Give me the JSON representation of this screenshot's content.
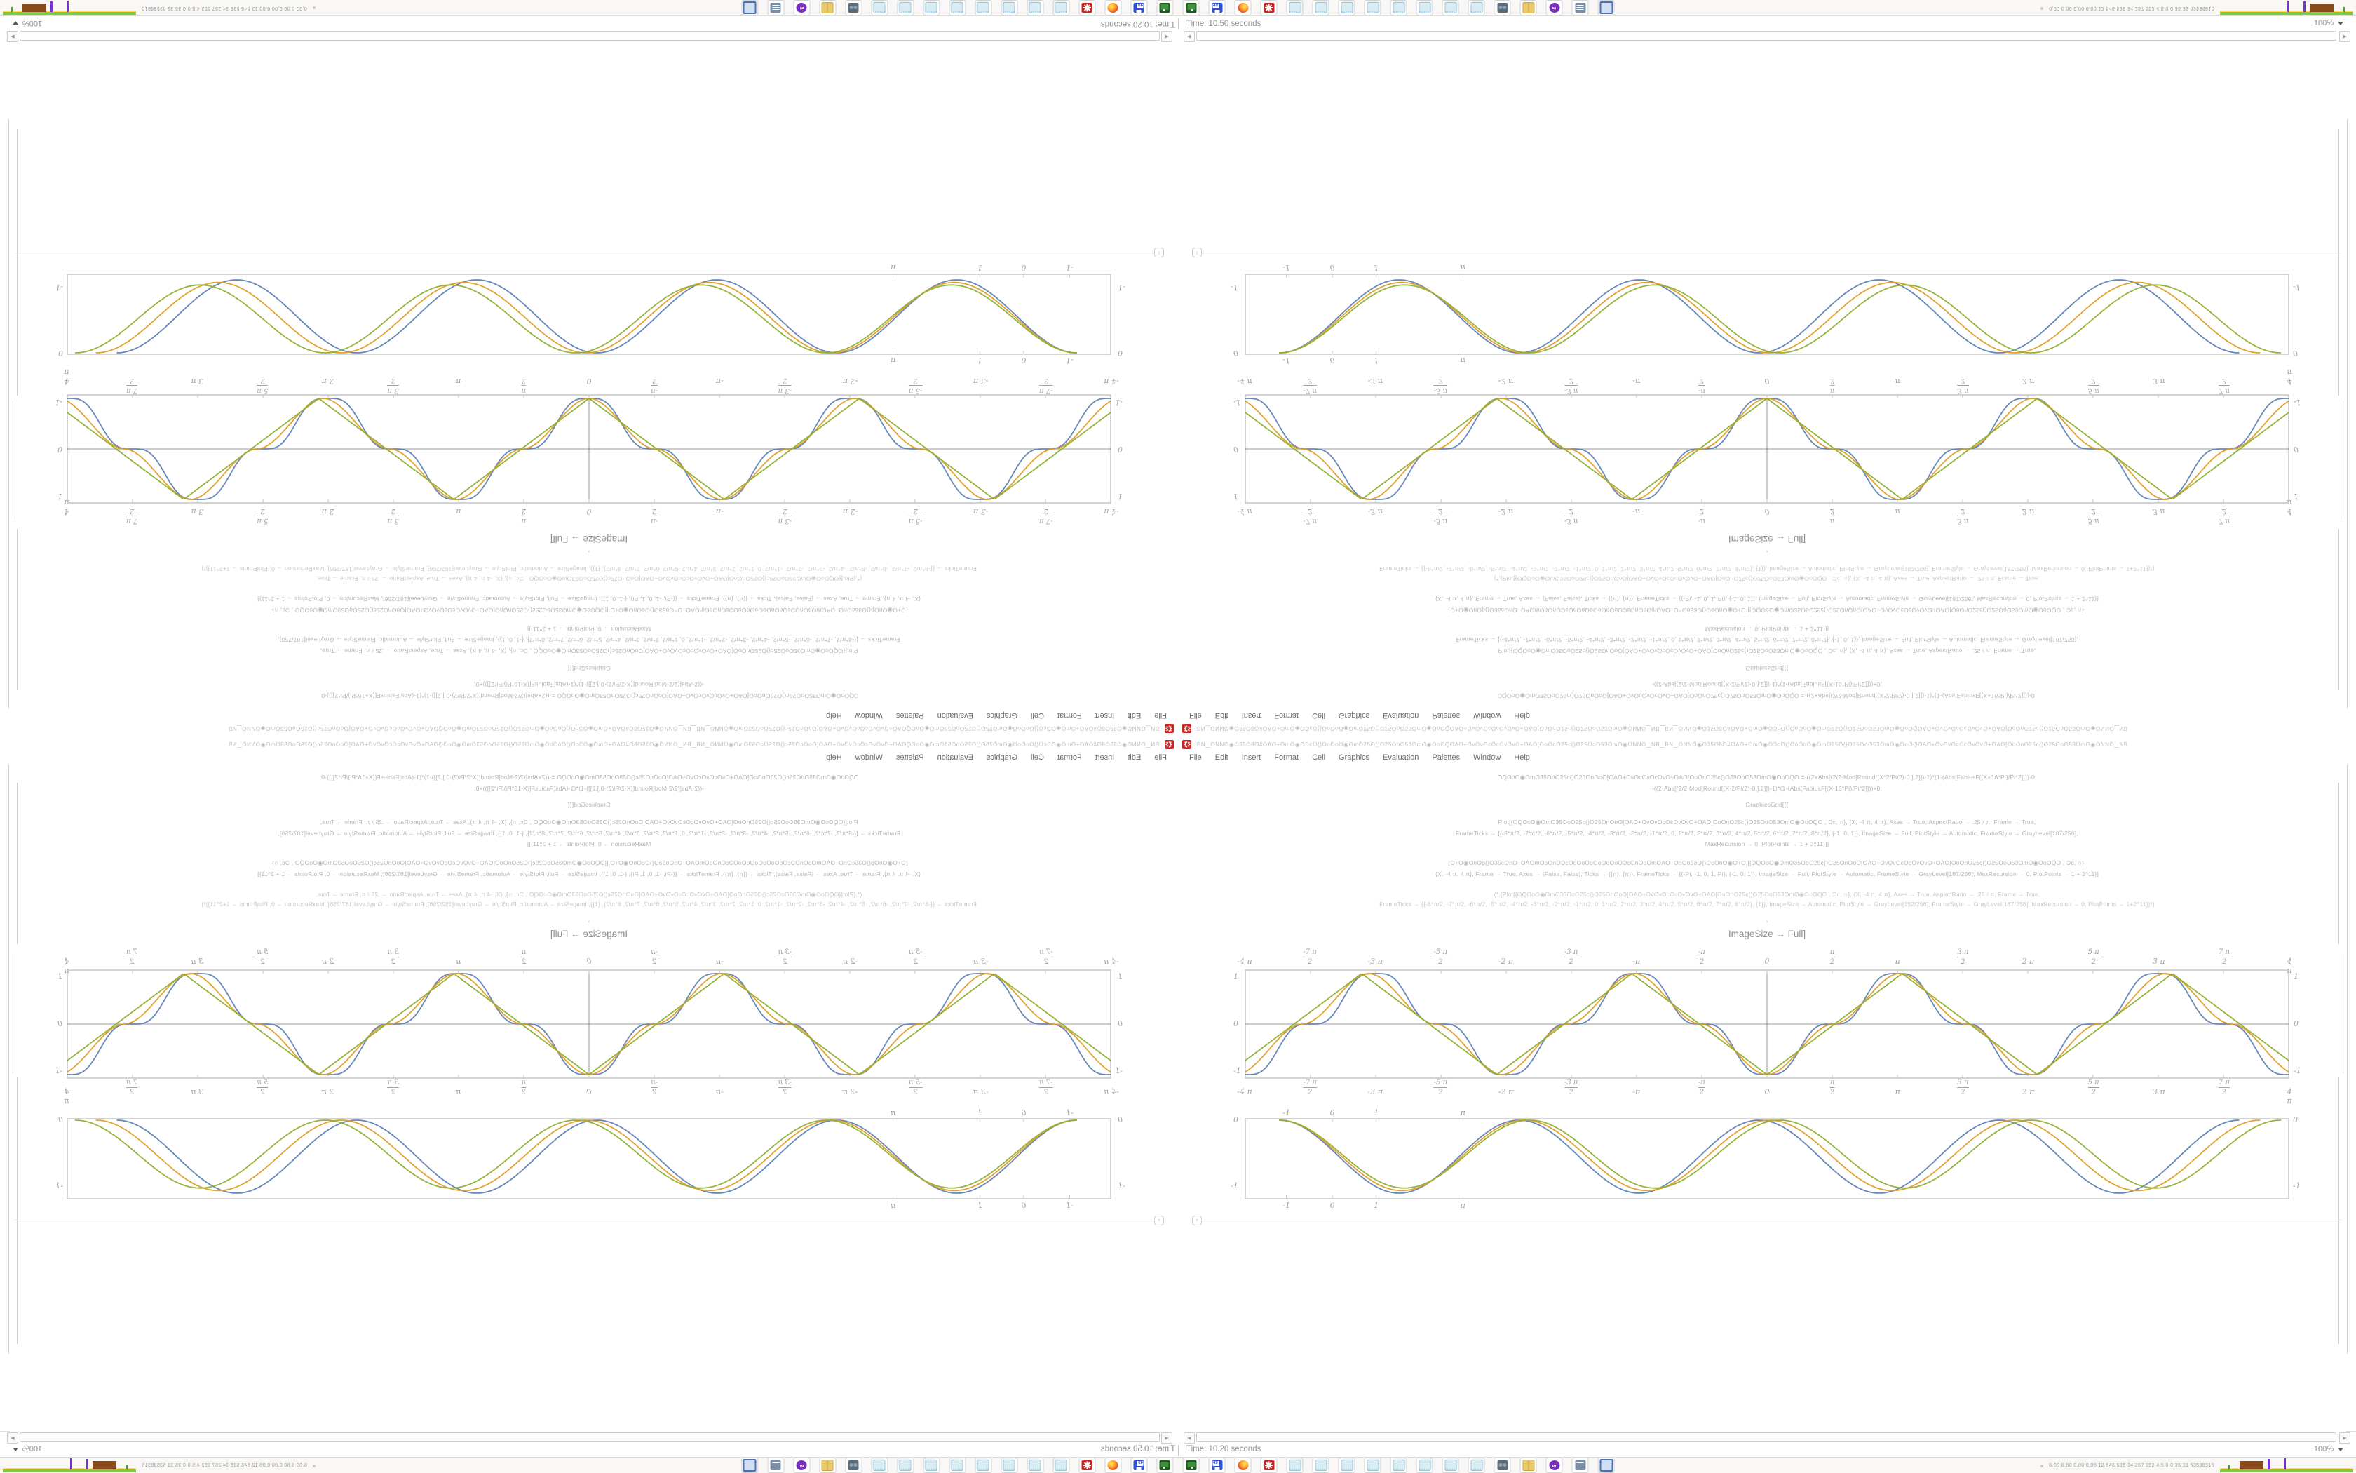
{
  "panel": {
    "monitor_values": "0.00 0.00 0.00 0.00   12 546 536   34 257 152   4.5   0.0   35   31   63586910",
    "expander_left": "»",
    "expander_right": "«",
    "icon_names": [
      "monitor",
      "script",
      "mask",
      "cabinet",
      "camera",
      "pages",
      "pages",
      "pages",
      "pages",
      "pages",
      "pages",
      "pages",
      "pages",
      "gear",
      "flame",
      "floppy49",
      "floppyG"
    ],
    "floppy_label": "49"
  },
  "status": {
    "zoom_label": "100%",
    "top_left_time": "Time: 10.20 seconds",
    "top_right_time": "Time: 10.50 seconds",
    "bottom_left_time": "Time: 10.50 seconds",
    "bottom_right_time": "Time: 10.20 seconds"
  },
  "window": {
    "title_glyphs": "BN‿ONNO◉O35O8O#OAO+OmO◉OƆcO()OoOoO◉OmO25O()O25OoO53OmO◉OoOQOAO+OvOvOcOcOvOvO+OAO[OoOnO25c()O25OoO53OmO◉ONNO‿NB‿BN‿ONNO◉O35O8O#OAO+OmO◉OƆcO()OoOoO◉OmO25O()O25OoO53OmO◉OoOQOAO+OvOvOcOcOvOvO+OAO[OoOnO25c()O25OoO53OmO◉ONNO‿NB",
    "menus": [
      "File",
      "Edit",
      "Insert",
      "Format",
      "Cell",
      "Graphics",
      "Evaluation",
      "Palettes",
      "Window",
      "Help"
    ],
    "code": {
      "l1": "OQOoO◉OmO35OoO25c()O25OnOoO[OAO+OvOcOvOcOvO+OAO[OoOnO25c()O25OoO53OmO◉OoOQO  =-((2+Abs[(2/2-Mod[Round[(X*2/Pi/2)-0.],2]])-1)*(1-(Abs[FabiusF[(X+16*Pi)/Pi*2]]))-0;",
      "l2": "-((2-Abs[(2/2-Mod[Round[(X-2/Pi/2)-0.],2]])-1)*(1-(Abs[FabiusF[(X-16*Pi)/Pi*2]]))+0;",
      "gg": "GraphicsGrid[{{",
      "a1": "Plot[{OQOoO◉OmO35OoO25c()O25OnOoO[OAO+OvOvOcOcOvOvO+OAO[OoOnO25c()O25OoO53OmO◉OoOQO   , Ɔc, ∩}, {X, -4 π, 4 π}, Axes → True, AspectRatio → .25 / π, Frame → True,",
      "a2": "FrameTicks → {{-8*π/2, -7*π/2, -6*π/2, -5*π/2, -4*π/2, -3*π/2, -2*π/2, -1*π/2, 0, 1*π/2, 2*π/2, 3*π/2, 4*π/2, 5*π/2, 6*π/2, 7*π/2, 8*π/2}, {-1, 0, 1}}, ImageSize → Full, PlotStyle → Automatic, FrameStyle → GrayLevel[187/256],",
      "a3": "MaxRecursion → 0, PlotPoints → 1 + 2^11}]]",
      "b1": "{O+O◉OnOp()O35cOnO+OAOmOoOnOƆcOoOoOoOoOoOoOƆcOnOoOmOAO+OnOo53O()OoOnO◉O+O   [[OQOoO◉OmO35OoO25c()O25OnOoO[OAO+OvOvOcOcOvOvO+OAO[OoOnO25c()O25OoO53OmO◉OoOQO   , Ɔc, ∩},",
      "b2": "{X, -4 π, 4 π}, Frame → True, Axes → {False, False}, Ticks → {{π}, {π}}, FrameTicks → {{-Pi, -1, 0, 1, Pi}, {-1, 0, 1}}, ImageSize → Full, PlotStyle → Automatic, FrameStyle → GrayLevel[187/256], MaxRecursion → 0, PlotPoints → 1 + 2^11}]",
      "c1": "(*,{Plot[{OQOoO◉OmO35OoO25c()O25OnOoO[OAO+OvOvOcOcOvOvO+OAO[OoOnO25c()O25OoO53OmO◉OoOQO   , Ɔc, ∩}, {X, -4 π, 4 π}, Axes → True, AspectRatio → .25 / π, Frame → True,",
      "c2": "FrameTicks → {{-8*π/2, -7*π/2, -6*π/2, -5*π/2, -4*π/2, -3*π/2, -2*π/2, -1*π/2, 0, 1*π/2, 2*π/2, 3*π/2, 4*π/2, 5*π/2, 6*π/2, 7*π/2, 8*π/2}, {1}}, ImageSize → Automatic, PlotStyle → GrayLevel[152/256], FrameStyle → GrayLevel[187/256], MaxRecursion → 0, PlotPoints → 1+2^11}]*)",
      "comma": ",",
      "heading": "ImageSize → Full]"
    },
    "plots": {
      "p2": {
        "xlabels": [
          {
            "v": "-4 π"
          },
          {
            "n": "-7 π",
            "d": "2"
          },
          {
            "v": "-3 π"
          },
          {
            "n": "-5 π",
            "d": "2"
          },
          {
            "v": "-2 π"
          },
          {
            "n": "-3 π",
            "d": "2"
          },
          {
            "v": "-π"
          },
          {
            "n": "-π",
            "d": "2"
          },
          {
            "v": "0"
          },
          {
            "n": "π",
            "d": "2"
          },
          {
            "v": "π"
          },
          {
            "n": "3 π",
            "d": "2"
          },
          {
            "v": "2 π"
          },
          {
            "n": "5 π",
            "d": "2"
          },
          {
            "v": "3 π"
          },
          {
            "n": "7 π",
            "d": "2"
          },
          {
            "v": "4 π"
          }
        ],
        "ylabels": [
          "1",
          "0",
          "-1"
        ],
        "series": [
          {
            "color": "#5e81b5",
            "shape": 2,
            "stretch": 1.0
          },
          {
            "color": "#e19c24",
            "shape": 1,
            "stretch": 1.018
          },
          {
            "color": "#8fb032",
            "shape": 0,
            "stretch": 1.036
          }
        ]
      },
      "p1": {
        "xlabels": [
          {
            "v": "-1",
            "x": 4.0
          },
          {
            "v": "0",
            "x": 8.4
          },
          {
            "v": "1",
            "x": 12.6
          },
          {
            "v": "π",
            "x": 20.9
          }
        ],
        "corner_label": "0",
        "side_label": "-1",
        "series": [
          {
            "color": "#5e81b5",
            "amp": 1.0,
            "end": 0.952
          },
          {
            "color": "#e19c24",
            "amp": 0.965,
            "end": 0.972
          },
          {
            "color": "#8fb032",
            "amp": 0.93,
            "end": 0.992
          }
        ]
      },
      "frame_color": "#c6c6c6",
      "axis_color": "#9a9a9a"
    }
  }
}
